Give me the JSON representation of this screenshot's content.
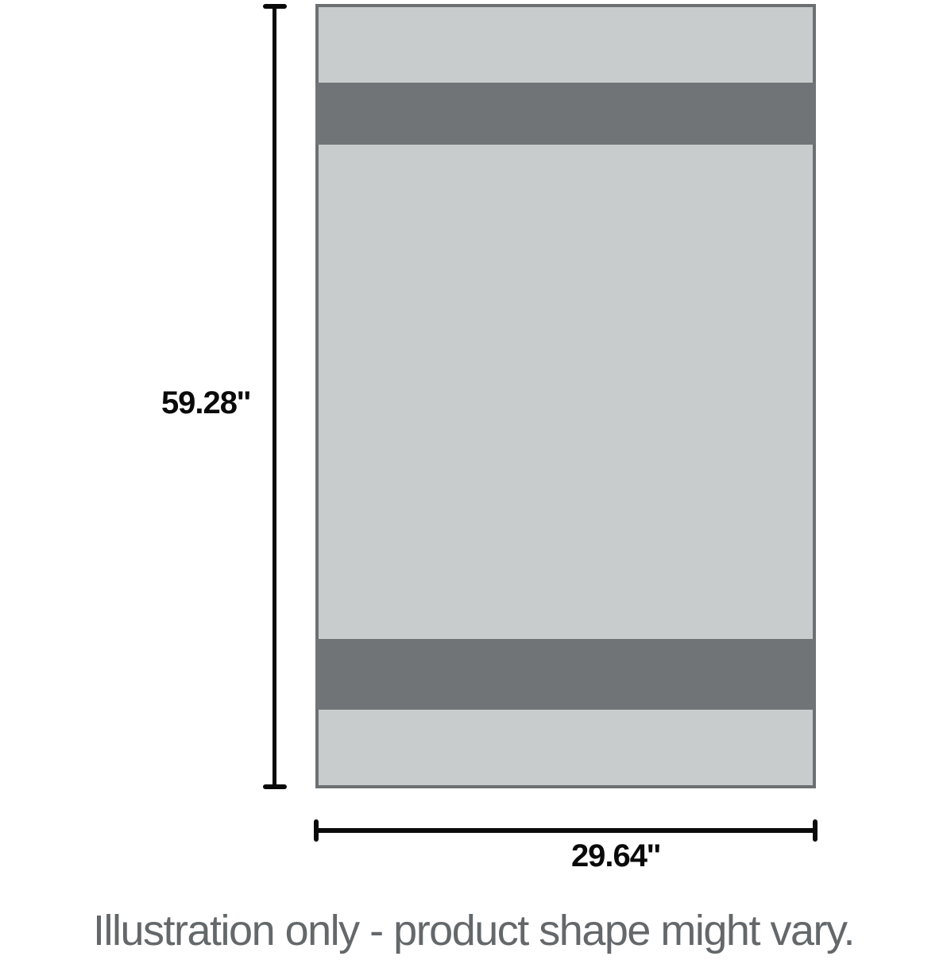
{
  "illustration": {
    "height_label": "59.28''",
    "width_label": "29.64''",
    "caption": "Illustration only - product shape might vary."
  },
  "colors": {
    "panel_light": "#c9cccd",
    "band_dark": "#717476",
    "border_gray": "#6d7072",
    "line_black": "#0a0a0a",
    "caption_gray": "#64686a",
    "bg": "#ffffff"
  }
}
